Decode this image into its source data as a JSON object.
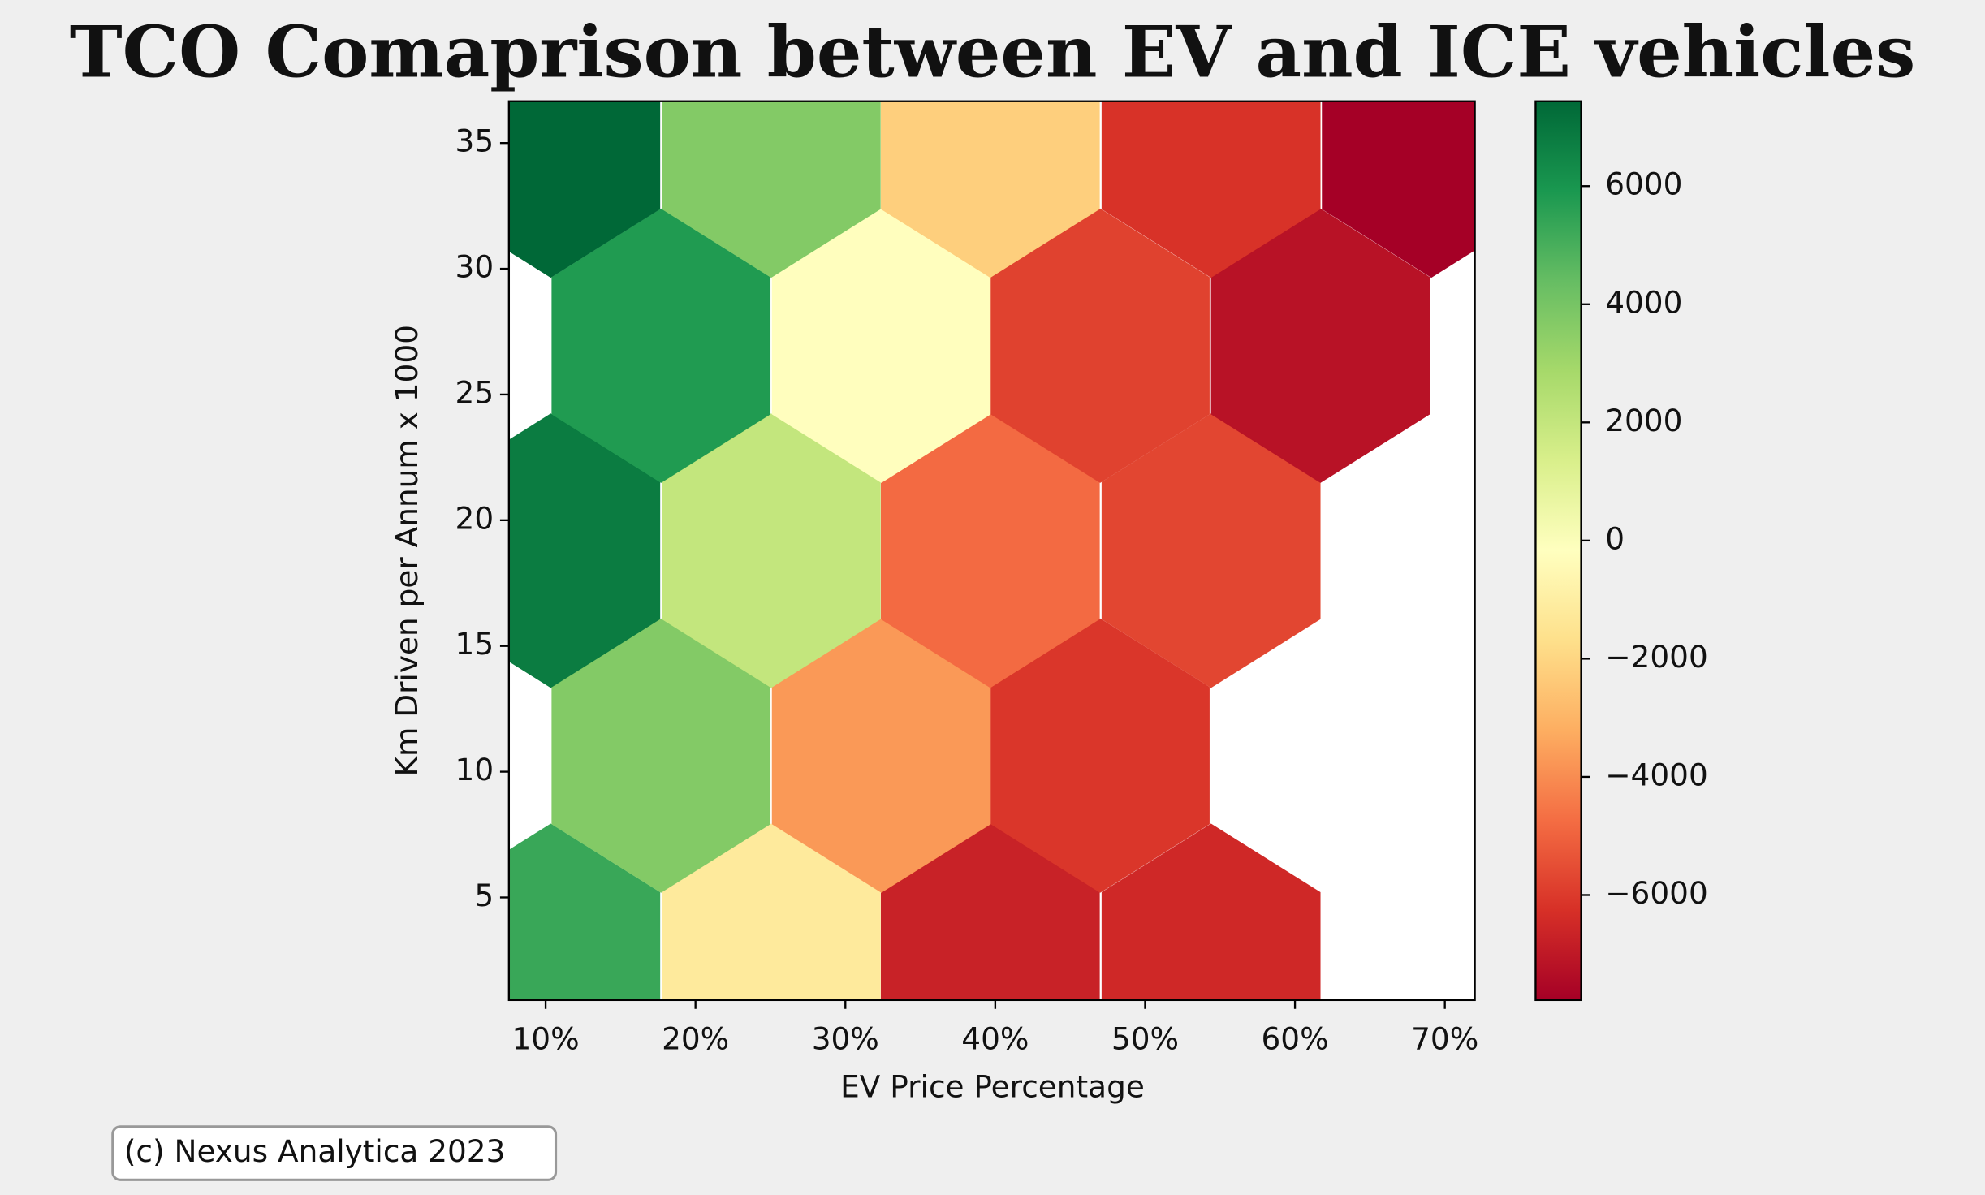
{
  "chart_data": {
    "type": "hexbin",
    "title": "TCO Comaprison between EV and ICE vehicles",
    "x_label": "EV Price Percentage",
    "y_label": "Km Driven per Annum x 1000",
    "annotation": "(c) Nexus Analytica 2023",
    "xlim": [
      7.55,
      72.0
    ],
    "ylim": [
      0.92,
      36.66
    ],
    "xticks": [
      {
        "value": 10,
        "label": "10%"
      },
      {
        "value": 20,
        "label": "20%"
      },
      {
        "value": 30,
        "label": "30%"
      },
      {
        "value": 40,
        "label": "40%"
      },
      {
        "value": 50,
        "label": "50%"
      },
      {
        "value": 60,
        "label": "60%"
      },
      {
        "value": 70,
        "label": "70%"
      }
    ],
    "yticks": [
      5,
      10,
      15,
      20,
      25,
      30,
      35
    ],
    "x": [
      10.34,
      25.05,
      39.67,
      54.4,
      17.7,
      32.4,
      47.0,
      10.34,
      25.05,
      39.67,
      54.4,
      17.7,
      32.4,
      47.0,
      61.7,
      10.34,
      25.05,
      39.67,
      54.4,
      69.1
    ],
    "y": [
      2.48,
      2.48,
      2.48,
      2.48,
      10.64,
      10.64,
      10.64,
      18.79,
      18.79,
      18.79,
      18.79,
      26.94,
      26.94,
      26.94,
      26.94,
      35.1,
      35.1,
      35.1,
      35.1,
      35.1
    ],
    "values": [
      5300,
      -1200,
      -6700,
      -6500,
      3700,
      -3700,
      -6100,
      6800,
      2000,
      -4800,
      -5700,
      5800,
      -200,
      -5800,
      -7200,
      7436,
      3700,
      -2200,
      -6200,
      -7778
    ],
    "colormap": "RdYlGn",
    "clim": [
      -7778,
      7436
    ],
    "colorbar_ticks": [
      {
        "value": -6000,
        "label": "−6000"
      },
      {
        "value": -4000,
        "label": "−4000"
      },
      {
        "value": -2000,
        "label": "−2000"
      },
      0,
      2000,
      4000,
      6000
    ]
  }
}
